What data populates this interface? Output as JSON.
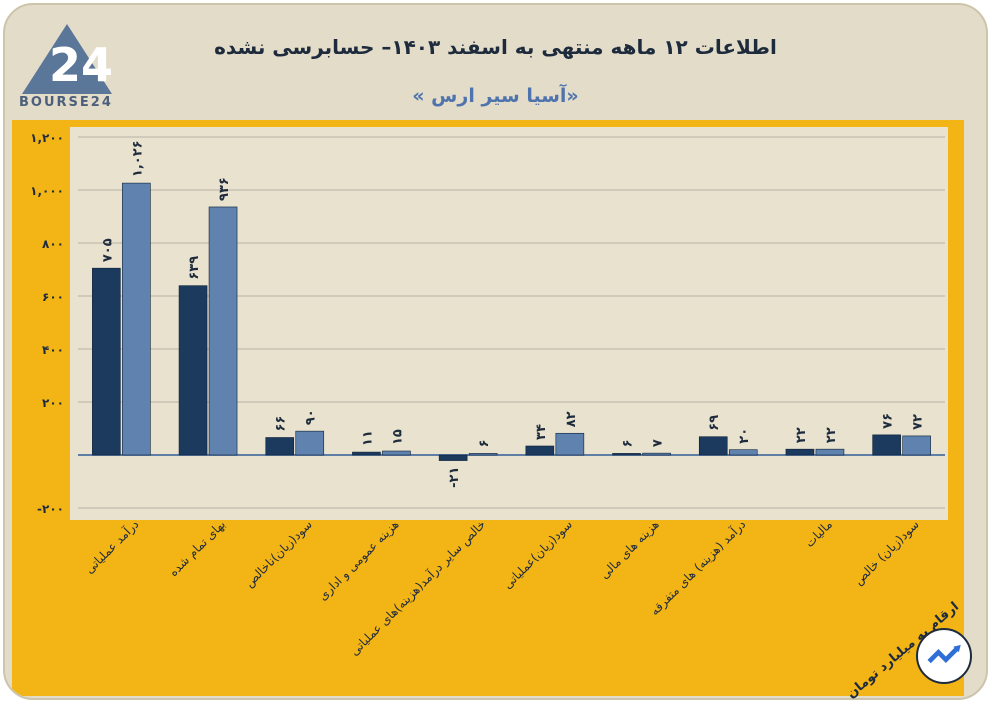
{
  "header": {
    "title": "اطلاعات ۱۲ ماهه منتهی به اسفند ۱۴۰۳– حسابرسی نشده",
    "subtitle": "«آسیا سیر ارس »",
    "logo_text": "BOURSE24"
  },
  "footer": {
    "unit_note": "ارقام به میلیارد تومان"
  },
  "colors": {
    "dark_bar": "#1b3a5e",
    "light_bar": "#5f82ae",
    "panel": "#f3b416",
    "plot_bg": "#e8e2cf",
    "grid": "#b8b3a4"
  },
  "chart_data": {
    "type": "bar",
    "title": "اطلاعات ۱۲ ماهه منتهی به اسفند ۱۴۰۳– حسابرسی نشده",
    "ylim": [
      -200,
      1200
    ],
    "yticks": [
      -200,
      0,
      200,
      400,
      600,
      800,
      1000,
      1200
    ],
    "ytick_labels": [
      "-۲۰۰",
      "",
      "۲۰۰",
      "۴۰۰",
      "۶۰۰",
      "۸۰۰",
      "۱,۰۰۰",
      "۱,۲۰۰"
    ],
    "categories": [
      "درآمد عملیاتی",
      "بهای تمام شده",
      "سود(زیان)ناخالص",
      "هزینه عمومی و اداری",
      "خالص سایر درآمد(هزینه)های عملیاتی",
      "سود(زیان)عملیاتی",
      "هزینه های مالی",
      "درآمد (هزینه) های متفرقه",
      "مالیات",
      "سود(زیان) خالص"
    ],
    "series": [
      {
        "name": "series-1",
        "values": [
          705,
          639,
          66,
          11,
          -21,
          34,
          6,
          69,
          22,
          76
        ],
        "labels": [
          "۷۰۵",
          "۶۳۹",
          "۶۶",
          "۱۱",
          "-۲۱",
          "۳۴",
          "۶",
          "۶۹",
          "۲۲",
          "۷۶"
        ]
      },
      {
        "name": "series-2",
        "values": [
          1026,
          936,
          90,
          15,
          6,
          82,
          7,
          20,
          22,
          72
        ],
        "labels": [
          "۱,۰۲۶",
          "۹۳۶",
          "۹۰",
          "۱۵",
          "۶",
          "۸۲",
          "۷",
          "۲۰",
          "۲۲",
          "۷۲"
        ]
      }
    ]
  }
}
